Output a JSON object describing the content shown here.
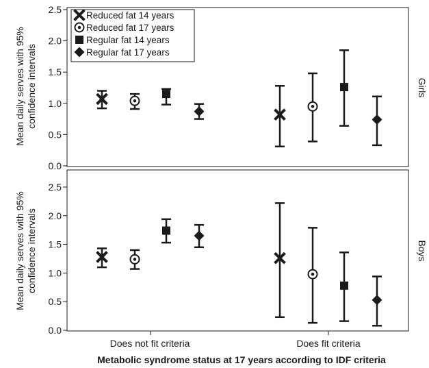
{
  "chart_data": {
    "type": "scatter",
    "subtype": "error-bar dot plot, two facets",
    "xlabel": "Metabolic syndrome status at 17 years according to IDF criteria",
    "ylabel_line1": "Mean daily serves with 95%",
    "ylabel_line2": "confidence intervals",
    "categories": [
      "Does not fit criteria",
      "Does fit criteria"
    ],
    "ylim": [
      0,
      2.7
    ],
    "yticks": [
      "0.0",
      "0.5",
      "1.0",
      "1.5",
      "2.0",
      "2.5"
    ],
    "grid": false,
    "legend": {
      "placement": "top-left of top panel",
      "entries": [
        {
          "name": "Reduced fat 14 years",
          "marker": "x-cross"
        },
        {
          "name": "Reduced fat 17 years",
          "marker": "circle-dot"
        },
        {
          "name": "Regular fat 14 years",
          "marker": "square"
        },
        {
          "name": "Regular fat 17 years",
          "marker": "diamond"
        }
      ]
    },
    "panels": [
      {
        "facet": "Girls",
        "series": [
          {
            "name": "Reduced fat 14 years",
            "marker": "x-cross",
            "values": [
              {
                "mean": 1.07,
                "lo": 0.92,
                "hi": 1.2
              },
              {
                "mean": 0.82,
                "lo": 0.31,
                "hi": 1.28
              }
            ]
          },
          {
            "name": "Reduced fat 17 years",
            "marker": "circle-dot",
            "values": [
              {
                "mean": 1.04,
                "lo": 0.91,
                "hi": 1.15
              },
              {
                "mean": 0.95,
                "lo": 0.39,
                "hi": 1.48
              }
            ]
          },
          {
            "name": "Regular fat 14 years",
            "marker": "square",
            "values": [
              {
                "mean": 1.15,
                "lo": 0.98,
                "hi": 1.23
              },
              {
                "mean": 1.26,
                "lo": 0.64,
                "hi": 1.85
              }
            ]
          },
          {
            "name": "Regular fat 17 years",
            "marker": "diamond",
            "values": [
              {
                "mean": 0.87,
                "lo": 0.75,
                "hi": 0.99
              },
              {
                "mean": 0.74,
                "lo": 0.33,
                "hi": 1.11
              }
            ]
          }
        ]
      },
      {
        "facet": "Boys",
        "series": [
          {
            "name": "Reduced fat 14 years",
            "marker": "x-cross",
            "values": [
              {
                "mean": 1.28,
                "lo": 1.1,
                "hi": 1.43
              },
              {
                "mean": 1.26,
                "lo": 0.23,
                "hi": 2.22
              }
            ]
          },
          {
            "name": "Reduced fat 17 years",
            "marker": "circle-dot",
            "values": [
              {
                "mean": 1.24,
                "lo": 1.07,
                "hi": 1.4
              },
              {
                "mean": 0.98,
                "lo": 0.13,
                "hi": 1.79
              }
            ]
          },
          {
            "name": "Regular fat 14 years",
            "marker": "square",
            "values": [
              {
                "mean": 1.74,
                "lo": 1.53,
                "hi": 1.94
              },
              {
                "mean": 0.78,
                "lo": 0.16,
                "hi": 1.36
              }
            ]
          },
          {
            "name": "Regular fat 17 years",
            "marker": "diamond",
            "values": [
              {
                "mean": 1.65,
                "lo": 1.45,
                "hi": 1.84
              },
              {
                "mean": 0.53,
                "lo": 0.08,
                "hi": 0.94
              }
            ]
          }
        ]
      }
    ],
    "colors": {
      "ink": "#1a1a1a",
      "background": "#ffffff"
    }
  }
}
